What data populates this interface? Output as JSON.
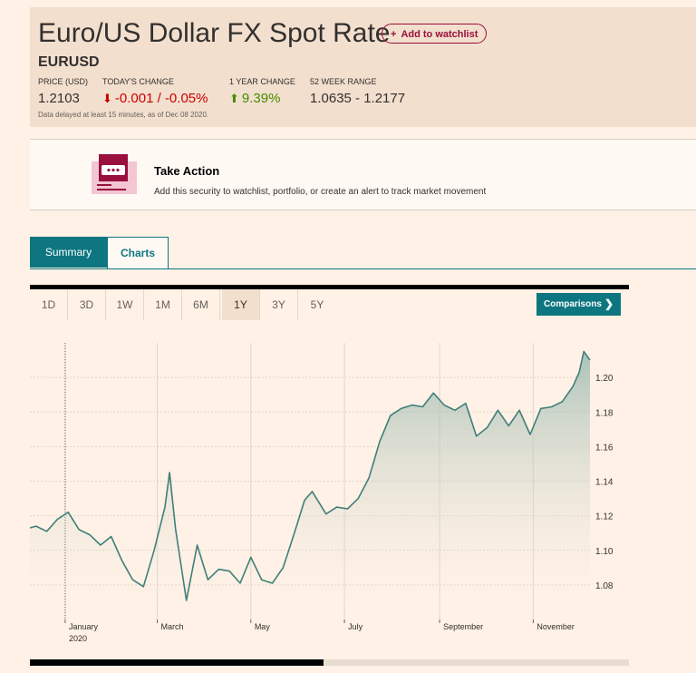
{
  "header": {
    "title": "Euro/US Dollar FX Spot Rate",
    "watchlist_label": "Add to watchlist",
    "symbol": "EURUSD",
    "stats": [
      {
        "label": "PRICE (USD)",
        "value": "1.2103"
      },
      {
        "label": "TODAY'S CHANGE",
        "value": "-0.001 / -0.05%",
        "direction": "down"
      },
      {
        "label": "1 YEAR CHANGE",
        "value": "9.39%",
        "direction": "up"
      },
      {
        "label": "52 WEEK RANGE",
        "value": "1.0635 - 1.2177"
      }
    ],
    "delay_note": "Data delayed at least 15 minutes, as of Dec 08 2020."
  },
  "take_action": {
    "title": "Take Action",
    "text": "Add this security to watchlist, portfolio, or create an alert to track market movement",
    "icon": "calendar-alert-icon"
  },
  "tabs": [
    {
      "label": "Summary",
      "active": true
    },
    {
      "label": "Charts",
      "active": false
    }
  ],
  "ranges": [
    {
      "label": "1D",
      "selected": false
    },
    {
      "label": "3D",
      "selected": false
    },
    {
      "label": "1W",
      "selected": false
    },
    {
      "label": "1M",
      "selected": false
    },
    {
      "label": "6M",
      "selected": false
    },
    {
      "label": "1Y",
      "selected": true
    },
    {
      "label": "3Y",
      "selected": false
    },
    {
      "label": "5Y",
      "selected": false
    }
  ],
  "comparisons_label": "Comparisons",
  "colors": {
    "accent": "#0d7680",
    "line": "#3f7f7a",
    "down": "#cc0000",
    "up": "#458b00",
    "brand": "#990f3d"
  },
  "chart_data": {
    "type": "area",
    "x_tick_labels": [
      "January",
      "2020",
      "March",
      "May",
      "July",
      "September",
      "November"
    ],
    "y_tick_labels": [
      "1.20",
      "1.18",
      "1.16",
      "1.14",
      "1.12",
      "1.10",
      "1.08"
    ],
    "ylim": [
      1.06,
      1.22
    ],
    "xlim": [
      "2019-12-09",
      "2020-12-08"
    ],
    "grid": true,
    "series": [
      {
        "x": [
          "2019-12-09",
          "2019-12-13",
          "2019-12-20",
          "2019-12-27",
          "2020-01-03",
          "2020-01-10",
          "2020-01-17",
          "2020-01-24",
          "2020-01-31",
          "2020-02-07",
          "2020-02-14",
          "2020-02-21",
          "2020-02-28",
          "2020-03-06",
          "2020-03-09",
          "2020-03-13",
          "2020-03-20",
          "2020-03-27",
          "2020-04-03",
          "2020-04-10",
          "2020-04-17",
          "2020-04-24",
          "2020-05-01",
          "2020-05-08",
          "2020-05-15",
          "2020-05-22",
          "2020-05-29",
          "2020-06-05",
          "2020-06-10",
          "2020-06-19",
          "2020-06-26",
          "2020-07-03",
          "2020-07-10",
          "2020-07-17",
          "2020-07-24",
          "2020-07-31",
          "2020-08-07",
          "2020-08-14",
          "2020-08-21",
          "2020-08-28",
          "2020-09-04",
          "2020-09-11",
          "2020-09-18",
          "2020-09-25",
          "2020-10-02",
          "2020-10-09",
          "2020-10-16",
          "2020-10-23",
          "2020-10-30",
          "2020-11-06",
          "2020-11-13",
          "2020-11-20",
          "2020-11-27",
          "2020-12-01",
          "2020-12-04",
          "2020-12-08"
        ],
        "values": [
          1.113,
          1.114,
          1.111,
          1.118,
          1.122,
          1.112,
          1.109,
          1.103,
          1.108,
          1.094,
          1.083,
          1.079,
          1.1,
          1.125,
          1.145,
          1.112,
          1.071,
          1.103,
          1.083,
          1.089,
          1.088,
          1.081,
          1.096,
          1.083,
          1.081,
          1.09,
          1.109,
          1.129,
          1.134,
          1.121,
          1.125,
          1.124,
          1.13,
          1.142,
          1.163,
          1.178,
          1.182,
          1.184,
          1.183,
          1.191,
          1.184,
          1.181,
          1.185,
          1.166,
          1.171,
          1.181,
          1.172,
          1.181,
          1.167,
          1.182,
          1.183,
          1.186,
          1.195,
          1.203,
          1.215,
          1.21
        ]
      }
    ]
  }
}
